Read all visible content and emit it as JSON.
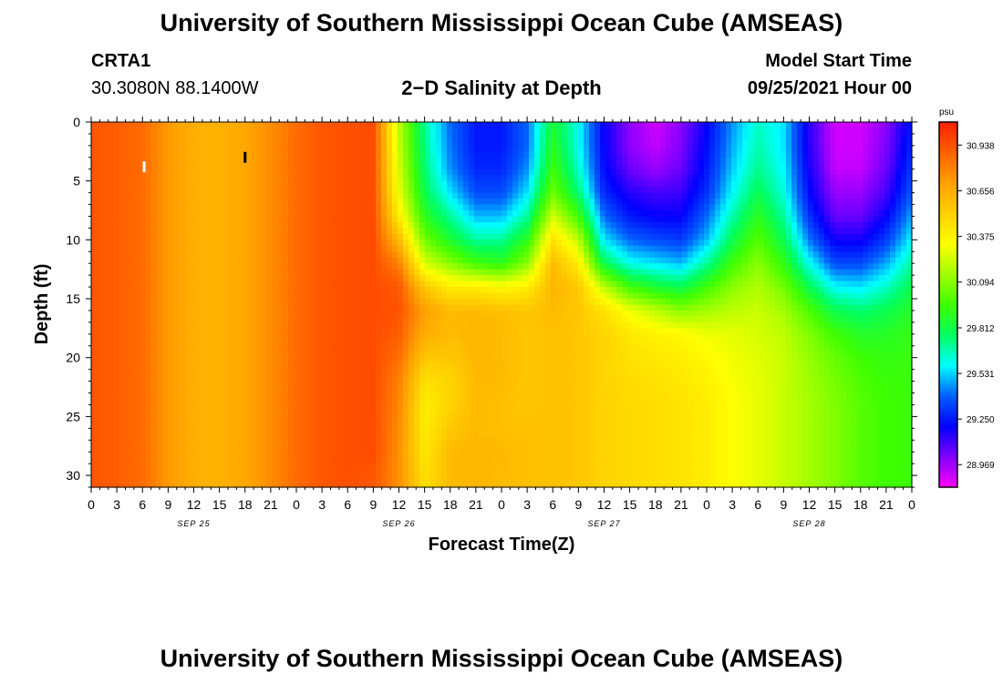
{
  "header": {
    "title": "University of Southern Mississippi Ocean Cube (AMSEAS)",
    "station_id": "CRTA1",
    "coords": "30.3080N  88.1400W",
    "plot_title": "2−D Salinity at Depth",
    "start_label": "Model Start Time",
    "start_value": "09/25/2021 Hour 00"
  },
  "footer": {
    "title": "University of Southern Mississippi Ocean Cube (AMSEAS)"
  },
  "chart_data": {
    "type": "heatmap",
    "title": "2−D Salinity at Depth",
    "xlabel": "Forecast Time(Z)",
    "ylabel": "Depth (ft)",
    "x_hours_range": [
      0,
      96
    ],
    "x_tick_labels": [
      "0",
      "3",
      "6",
      "9",
      "12",
      "15",
      "18",
      "21",
      "0",
      "3",
      "6",
      "9",
      "12",
      "15",
      "18",
      "21",
      "0",
      "3",
      "6",
      "9",
      "12",
      "15",
      "18",
      "21",
      "0",
      "3",
      "6",
      "9",
      "12",
      "15",
      "18",
      "21",
      "0"
    ],
    "x_date_labels": [
      {
        "label": "SEP 25",
        "hour": 12
      },
      {
        "label": "SEP 26",
        "hour": 36
      },
      {
        "label": "SEP 27",
        "hour": 60
      },
      {
        "label": "SEP 28",
        "hour": 84
      }
    ],
    "y_range_ft": [
      0,
      31
    ],
    "y_ticks": [
      "0",
      "5",
      "10",
      "15",
      "20",
      "25",
      "30"
    ],
    "y_reversed": true,
    "colorbar": {
      "unit": "psu",
      "min": 28.83,
      "max": 31.08,
      "labels": [
        "30.938",
        "30.656",
        "30.375",
        "30.094",
        "29.812",
        "29.531",
        "29.250",
        "28.969"
      ],
      "colors": [
        "#ff00ff",
        "#8000ff",
        "#0000ff",
        "#0060ff",
        "#00ffff",
        "#00ff60",
        "#40ff00",
        "#a0ff00",
        "#ffff00",
        "#ffd000",
        "#ffa000",
        "#ff6000",
        "#ff2000"
      ]
    },
    "markers": [
      {
        "hour": 6.2,
        "depth_ft": 3.8,
        "color": "#ffffff"
      },
      {
        "hour": 18.0,
        "depth_ft": 3.0,
        "color": "#000000"
      }
    ],
    "grid_hours": [
      0,
      3,
      6,
      9,
      12,
      15,
      18,
      21,
      24,
      27,
      30,
      33,
      36,
      39,
      42,
      45,
      48,
      51,
      54,
      57,
      60,
      63,
      66,
      69,
      72,
      75,
      78,
      81,
      84,
      87,
      90,
      93,
      96
    ],
    "grid_depths_ft": [
      0,
      2,
      4,
      6,
      8,
      10,
      12,
      14,
      16,
      18,
      20,
      22,
      24,
      26,
      28,
      30,
      31
    ],
    "salinity_psu": [
      [
        30.92,
        30.92,
        30.92,
        30.92,
        30.92,
        30.92,
        30.92,
        30.92,
        30.92,
        30.92,
        30.92,
        30.92,
        30.92,
        30.92,
        30.92,
        30.92,
        30.92
      ],
      [
        30.9,
        30.9,
        30.9,
        30.9,
        30.9,
        30.9,
        30.9,
        30.9,
        30.9,
        30.9,
        30.9,
        30.9,
        30.9,
        30.9,
        30.9,
        30.9,
        30.9
      ],
      [
        30.86,
        30.86,
        30.86,
        30.86,
        30.86,
        30.86,
        30.86,
        30.86,
        30.86,
        30.86,
        30.86,
        30.86,
        30.86,
        30.86,
        30.86,
        30.86,
        30.86
      ],
      [
        30.72,
        30.72,
        30.72,
        30.72,
        30.72,
        30.72,
        30.72,
        30.72,
        30.72,
        30.72,
        30.72,
        30.72,
        30.72,
        30.72,
        30.72,
        30.72,
        30.72
      ],
      [
        30.65,
        30.65,
        30.65,
        30.65,
        30.65,
        30.65,
        30.65,
        30.65,
        30.65,
        30.65,
        30.65,
        30.65,
        30.65,
        30.65,
        30.65,
        30.65,
        30.65
      ],
      [
        30.63,
        30.63,
        30.63,
        30.63,
        30.63,
        30.63,
        30.63,
        30.63,
        30.63,
        30.63,
        30.63,
        30.63,
        30.63,
        30.63,
        30.63,
        30.63,
        30.63
      ],
      [
        30.68,
        30.68,
        30.68,
        30.68,
        30.68,
        30.68,
        30.68,
        30.68,
        30.68,
        30.68,
        30.68,
        30.68,
        30.68,
        30.68,
        30.68,
        30.68,
        30.68
      ],
      [
        30.76,
        30.76,
        30.76,
        30.76,
        30.76,
        30.76,
        30.76,
        30.76,
        30.76,
        30.76,
        30.76,
        30.76,
        30.76,
        30.76,
        30.76,
        30.76,
        30.76
      ],
      [
        30.86,
        30.86,
        30.86,
        30.86,
        30.86,
        30.86,
        30.86,
        30.86,
        30.86,
        30.86,
        30.86,
        30.86,
        30.86,
        30.86,
        30.86,
        30.86,
        30.86
      ],
      [
        30.92,
        30.92,
        30.92,
        30.92,
        30.92,
        30.92,
        30.92,
        30.92,
        30.92,
        30.92,
        30.92,
        30.92,
        30.92,
        30.92,
        30.92,
        30.92,
        30.92
      ],
      [
        30.94,
        30.94,
        30.94,
        30.94,
        30.94,
        30.94,
        30.94,
        30.94,
        30.94,
        30.94,
        30.94,
        30.94,
        30.94,
        30.94,
        30.94,
        30.94,
        30.94
      ],
      [
        30.95,
        30.95,
        30.95,
        30.95,
        30.95,
        30.95,
        30.95,
        30.95,
        30.95,
        30.95,
        30.95,
        30.95,
        30.95,
        30.95,
        30.95,
        30.92,
        30.92
      ],
      [
        30.2,
        30.22,
        30.25,
        30.3,
        30.4,
        30.6,
        30.8,
        30.92,
        30.93,
        30.9,
        30.85,
        30.8,
        30.78,
        30.76,
        30.75,
        30.75,
        30.75
      ],
      [
        29.7,
        29.72,
        29.75,
        29.8,
        29.9,
        30.05,
        30.25,
        30.55,
        30.7,
        30.65,
        30.55,
        30.45,
        30.4,
        30.4,
        30.42,
        30.45,
        30.45
      ],
      [
        29.4,
        29.42,
        29.45,
        29.55,
        29.7,
        29.85,
        30.1,
        30.4,
        30.6,
        30.6,
        30.55,
        30.5,
        30.5,
        30.55,
        30.6,
        30.6,
        30.6
      ],
      [
        29.25,
        29.25,
        29.28,
        29.35,
        29.5,
        29.7,
        29.95,
        30.4,
        30.6,
        30.62,
        30.62,
        30.6,
        30.6,
        30.6,
        30.62,
        30.62,
        30.62
      ],
      [
        29.25,
        29.25,
        29.28,
        29.35,
        29.5,
        29.7,
        29.9,
        30.35,
        30.58,
        30.6,
        30.6,
        30.6,
        30.58,
        30.58,
        30.6,
        30.6,
        30.6
      ],
      [
        29.4,
        29.4,
        29.45,
        29.55,
        29.7,
        29.9,
        30.1,
        30.4,
        30.55,
        30.55,
        30.55,
        30.55,
        30.55,
        30.58,
        30.58,
        30.58,
        30.58
      ],
      [
        29.85,
        29.9,
        29.95,
        30.05,
        30.25,
        30.45,
        30.6,
        30.62,
        30.6,
        30.58,
        30.58,
        30.58,
        30.58,
        30.58,
        30.58,
        30.58,
        30.58
      ],
      [
        29.6,
        29.6,
        29.65,
        29.75,
        29.95,
        30.2,
        30.4,
        30.55,
        30.55,
        30.55,
        30.55,
        30.55,
        30.55,
        30.55,
        30.55,
        30.55,
        30.55
      ],
      [
        29.2,
        29.2,
        29.22,
        29.28,
        29.4,
        29.55,
        29.8,
        30.2,
        30.45,
        30.5,
        30.5,
        30.5,
        30.5,
        30.5,
        30.5,
        30.5,
        30.5
      ],
      [
        29.0,
        29.0,
        29.05,
        29.15,
        29.25,
        29.4,
        29.6,
        29.95,
        30.3,
        30.42,
        30.45,
        30.47,
        30.48,
        30.48,
        30.48,
        30.48,
        30.48
      ],
      [
        28.9,
        28.92,
        28.98,
        29.1,
        29.2,
        29.35,
        29.55,
        29.85,
        30.2,
        30.38,
        30.42,
        30.45,
        30.46,
        30.46,
        30.46,
        30.46,
        30.46
      ],
      [
        29.0,
        29.02,
        29.05,
        29.12,
        29.2,
        29.32,
        29.5,
        29.8,
        30.1,
        30.35,
        30.4,
        30.42,
        30.44,
        30.44,
        30.44,
        30.44,
        30.44
      ],
      [
        29.2,
        29.22,
        29.25,
        29.3,
        29.4,
        29.5,
        29.7,
        29.95,
        30.15,
        30.3,
        30.35,
        30.38,
        30.4,
        30.4,
        30.4,
        30.4,
        30.4
      ],
      [
        29.45,
        29.48,
        29.52,
        29.58,
        29.68,
        29.8,
        29.95,
        30.1,
        30.2,
        30.28,
        30.3,
        30.32,
        30.33,
        30.33,
        30.33,
        30.33,
        30.33
      ],
      [
        29.65,
        29.68,
        29.72,
        29.8,
        29.9,
        30.0,
        30.1,
        30.18,
        30.22,
        30.25,
        30.27,
        30.28,
        30.28,
        30.28,
        30.28,
        30.28,
        30.28
      ],
      [
        29.55,
        29.55,
        29.58,
        29.62,
        29.7,
        29.8,
        29.92,
        30.05,
        30.15,
        30.2,
        30.22,
        30.22,
        30.22,
        30.22,
        30.22,
        30.22,
        30.22
      ],
      [
        29.15,
        29.15,
        29.18,
        29.22,
        29.3,
        29.42,
        29.6,
        29.8,
        29.98,
        30.08,
        30.12,
        30.14,
        30.15,
        30.15,
        30.15,
        30.15,
        30.15
      ],
      [
        28.9,
        28.9,
        28.92,
        28.98,
        29.05,
        29.18,
        29.35,
        29.58,
        29.8,
        29.95,
        30.02,
        30.06,
        30.08,
        30.08,
        30.08,
        30.08,
        30.08
      ],
      [
        28.9,
        28.9,
        28.92,
        28.98,
        29.05,
        29.18,
        29.35,
        29.55,
        29.75,
        29.88,
        29.95,
        29.98,
        30.0,
        30.0,
        30.0,
        30.0,
        30.0
      ],
      [
        29.0,
        29.02,
        29.05,
        29.1,
        29.2,
        29.32,
        29.48,
        29.65,
        29.8,
        29.88,
        29.92,
        29.94,
        29.95,
        29.95,
        29.95,
        29.95,
        29.95
      ],
      [
        29.25,
        29.28,
        29.32,
        29.38,
        29.48,
        29.58,
        29.7,
        29.8,
        29.88,
        29.92,
        29.93,
        29.94,
        29.94,
        29.94,
        29.94,
        29.94,
        29.94
      ]
    ]
  }
}
